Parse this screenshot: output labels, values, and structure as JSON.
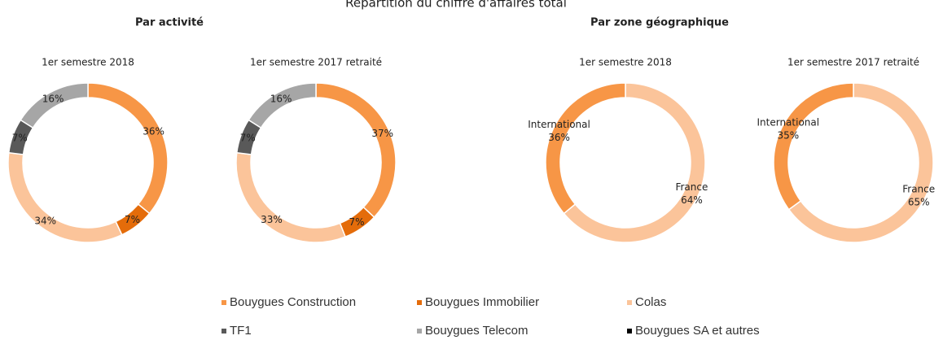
{
  "title": "Répartition du chiffre d'affaires total",
  "groups": [
    "Par activité",
    "Par zone géographique"
  ],
  "legend": {
    "labels": [
      "Bouygues Construction",
      "Bouygues Immobilier",
      "Colas",
      "TF1",
      "Bouygues Telecom",
      "Bouygues SA et autres"
    ],
    "colors": [
      "#f79646",
      "#e46c0a",
      "#fbc49a",
      "#595959",
      "#a6a6a6",
      "#000000"
    ]
  },
  "chart_data": [
    {
      "type": "pie",
      "title": "1er semestre 2018",
      "categories": [
        "Bouygues Construction",
        "Bouygues Immobilier",
        "Colas",
        "TF1",
        "Bouygues Telecom"
      ],
      "values": [
        36,
        7,
        34,
        7,
        16
      ],
      "value_labels": [
        "36%",
        "7%",
        "34%",
        "7%",
        "16%"
      ],
      "colors": [
        "#f79646",
        "#e46c0a",
        "#fbc49a",
        "#595959",
        "#a6a6a6"
      ]
    },
    {
      "type": "pie",
      "title": "1er semestre 2017 retraité",
      "categories": [
        "Bouygues Construction",
        "Bouygues Immobilier",
        "Colas",
        "TF1",
        "Bouygues Telecom"
      ],
      "values": [
        37,
        7,
        33,
        7,
        16
      ],
      "value_labels": [
        "37%",
        "7%",
        "33%",
        "7%",
        "16%"
      ],
      "colors": [
        "#f79646",
        "#e46c0a",
        "#fbc49a",
        "#595959",
        "#a6a6a6"
      ]
    },
    {
      "type": "pie",
      "title": "1er semestre 2018",
      "categories": [
        "France",
        "International"
      ],
      "values": [
        64,
        36
      ],
      "value_labels": [
        "64%",
        "36%"
      ],
      "show_categories": true,
      "colors": [
        "#fbc49a",
        "#f79646"
      ]
    },
    {
      "type": "pie",
      "title": "1er semestre 2017 retraité",
      "categories": [
        "France",
        "International"
      ],
      "values": [
        65,
        35
      ],
      "value_labels": [
        "65%",
        "35%"
      ],
      "show_categories": true,
      "colors": [
        "#fbc49a",
        "#f79646"
      ]
    }
  ]
}
